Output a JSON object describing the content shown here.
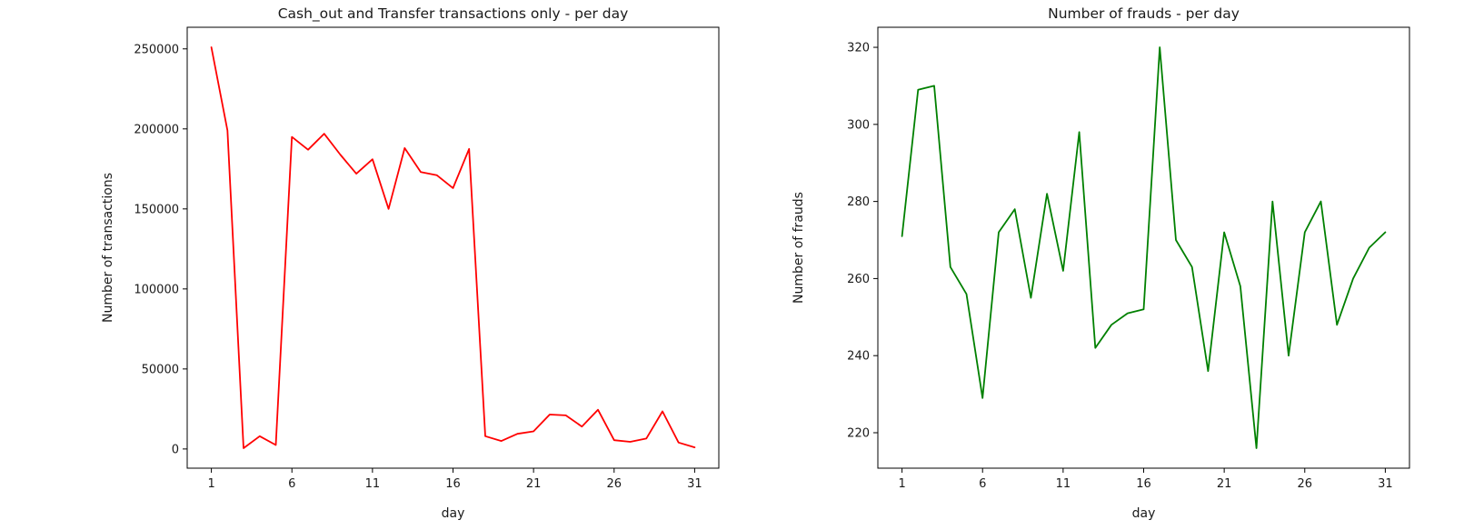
{
  "figure": {
    "background": "#ffffff",
    "text_color": "#1a1a1a",
    "spine_color": "#000000"
  },
  "chart_data": [
    {
      "type": "line",
      "title": "Cash_out and Transfer transactions only - per day",
      "xlabel": "day",
      "ylabel": "Number of transactions",
      "color": "#ff0000",
      "grid": false,
      "legend": "none",
      "xlim": [
        -0.5,
        32.5
      ],
      "ylim": [
        -12000,
        263500
      ],
      "xticks": [
        1,
        6,
        11,
        16,
        21,
        26,
        31
      ],
      "yticks": [
        0,
        50000,
        100000,
        150000,
        200000,
        250000
      ],
      "x": [
        1,
        2,
        3,
        4,
        5,
        6,
        7,
        8,
        9,
        10,
        11,
        12,
        13,
        14,
        15,
        16,
        17,
        18,
        19,
        20,
        21,
        22,
        23,
        24,
        25,
        26,
        27,
        28,
        29,
        30,
        31
      ],
      "values": [
        251000,
        199000,
        500,
        8000,
        2500,
        195000,
        187000,
        197000,
        184000,
        172000,
        181000,
        150000,
        188000,
        173000,
        171000,
        163000,
        187500,
        8000,
        5000,
        9500,
        11000,
        21500,
        21000,
        14000,
        24500,
        5500,
        4500,
        6500,
        23500,
        4000,
        1000
      ]
    },
    {
      "type": "line",
      "title": "Number of frauds - per day",
      "xlabel": "day",
      "ylabel": "Number of frauds",
      "color": "#008000",
      "grid": false,
      "legend": "none",
      "xlim": [
        -0.5,
        32.5
      ],
      "ylim": [
        210.8,
        325.2
      ],
      "xticks": [
        1,
        6,
        11,
        16,
        21,
        26,
        31
      ],
      "yticks": [
        220,
        240,
        260,
        280,
        300,
        320
      ],
      "x": [
        1,
        2,
        3,
        4,
        5,
        6,
        7,
        8,
        9,
        10,
        11,
        12,
        13,
        14,
        15,
        16,
        17,
        18,
        19,
        20,
        21,
        22,
        23,
        24,
        25,
        26,
        27,
        28,
        29,
        30,
        31
      ],
      "values": [
        271,
        309,
        310,
        263,
        256,
        229,
        272,
        278,
        255,
        282,
        262,
        298,
        242,
        248,
        251,
        252,
        320,
        270,
        263,
        236,
        272,
        258,
        216,
        280,
        240,
        272,
        280,
        248,
        260,
        268,
        272
      ]
    }
  ]
}
